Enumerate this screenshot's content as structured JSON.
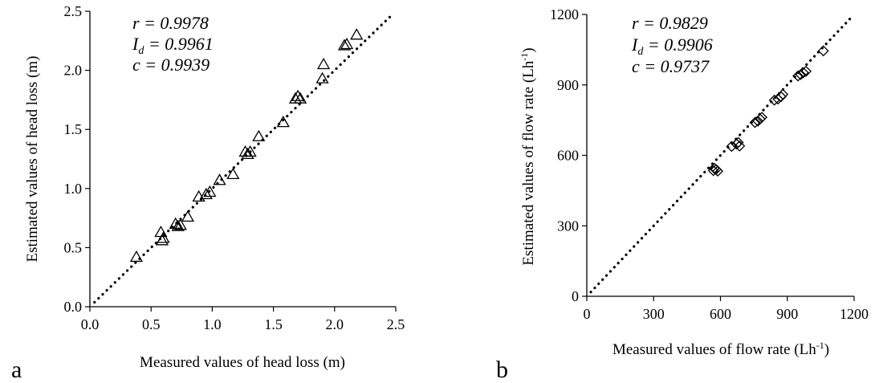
{
  "chart_data": [
    {
      "type": "scatter",
      "panel_label": "a",
      "xlabel": "Measured values of head loss (m)",
      "ylabel": "Estimated values of head loss (m)",
      "xlim": [
        0,
        2.5
      ],
      "ylim": [
        0,
        2.5
      ],
      "x_ticks": [
        "0.0",
        "0.5",
        "1.0",
        "1.5",
        "2.0",
        "2.5"
      ],
      "y_ticks": [
        "0.0",
        "0.5",
        "1.0",
        "1.5",
        "2.0",
        "2.5"
      ],
      "marker": "triangle",
      "reference_line": "1:1 dotted",
      "stats": {
        "r": "0.9978",
        "Id": "0.9961",
        "c": "0.9939"
      },
      "points": [
        [
          0.38,
          0.42
        ],
        [
          0.58,
          0.63
        ],
        [
          0.59,
          0.56
        ],
        [
          0.6,
          0.58
        ],
        [
          0.7,
          0.7
        ],
        [
          0.72,
          0.68
        ],
        [
          0.74,
          0.69
        ],
        [
          0.8,
          0.76
        ],
        [
          0.89,
          0.93
        ],
        [
          0.95,
          0.95
        ],
        [
          0.98,
          0.97
        ],
        [
          1.06,
          1.07
        ],
        [
          1.17,
          1.12
        ],
        [
          1.27,
          1.31
        ],
        [
          1.29,
          1.29
        ],
        [
          1.31,
          1.31
        ],
        [
          1.38,
          1.44
        ],
        [
          1.58,
          1.56
        ],
        [
          1.68,
          1.76
        ],
        [
          1.7,
          1.78
        ],
        [
          1.72,
          1.76
        ],
        [
          1.9,
          1.93
        ],
        [
          1.91,
          2.05
        ],
        [
          2.08,
          2.21
        ],
        [
          2.1,
          2.22
        ],
        [
          2.18,
          2.3
        ]
      ]
    },
    {
      "type": "scatter",
      "panel_label": "b",
      "xlabel": "Measured values of flow rate (Lh-1)",
      "ylabel": "Estimated values of flow rate (Lh-1)",
      "xlim": [
        0,
        1200
      ],
      "ylim": [
        0,
        1200
      ],
      "x_ticks": [
        "0",
        "300",
        "600",
        "900",
        "1200"
      ],
      "y_ticks": [
        "0",
        "300",
        "600",
        "900",
        "1200"
      ],
      "marker": "diamond",
      "reference_line": "1:1 dotted",
      "stats": {
        "r": "0.9829",
        "Id": "0.9906",
        "c": "0.9737"
      },
      "points": [
        [
          568,
          535
        ],
        [
          572,
          545
        ],
        [
          580,
          540
        ],
        [
          588,
          533
        ],
        [
          650,
          638
        ],
        [
          672,
          648
        ],
        [
          680,
          655
        ],
        [
          686,
          640
        ],
        [
          755,
          740
        ],
        [
          768,
          746
        ],
        [
          778,
          755
        ],
        [
          786,
          762
        ],
        [
          842,
          835
        ],
        [
          858,
          840
        ],
        [
          872,
          850
        ],
        [
          880,
          860
        ],
        [
          948,
          938
        ],
        [
          960,
          944
        ],
        [
          972,
          952
        ],
        [
          984,
          958
        ],
        [
          1062,
          1045
        ]
      ]
    }
  ]
}
